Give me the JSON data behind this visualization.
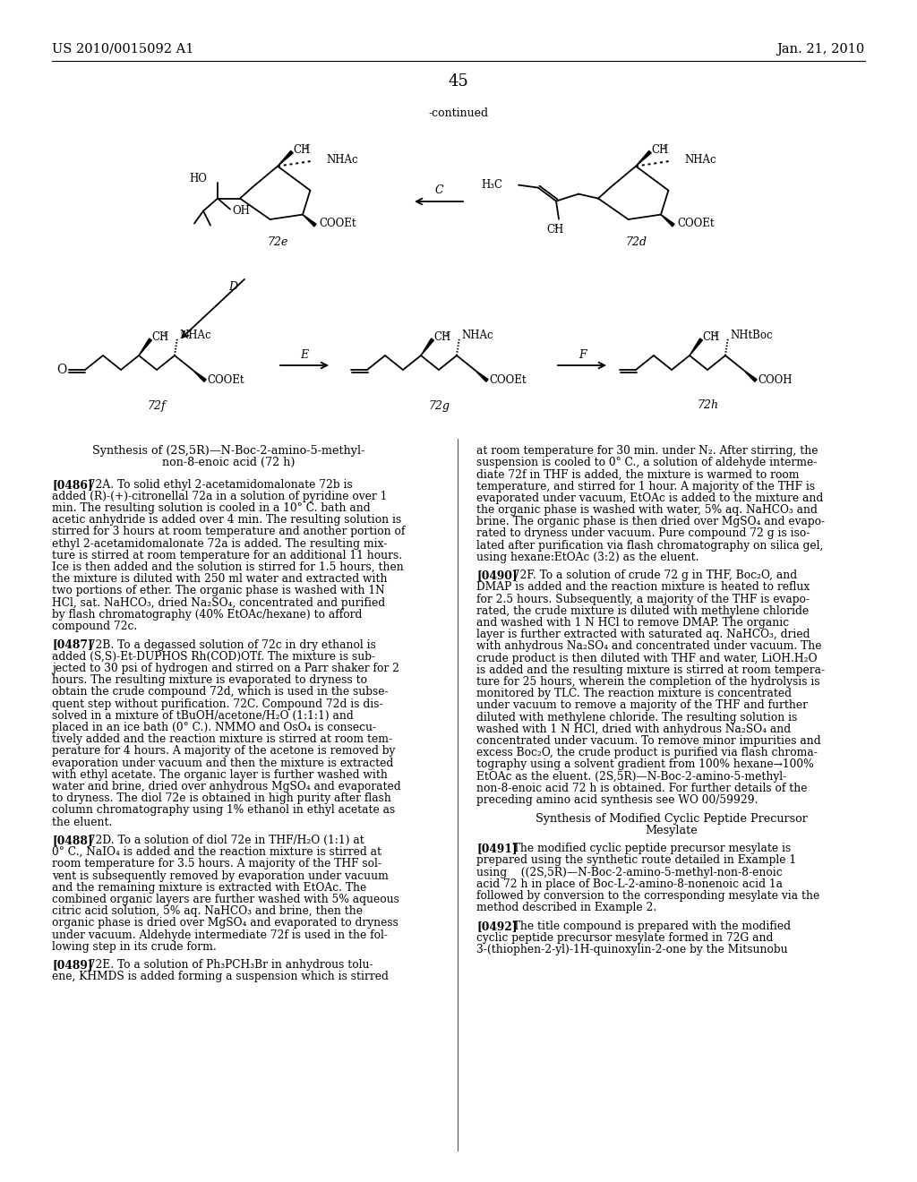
{
  "background_color": "#ffffff",
  "patent_left": "US 2010/0015092 A1",
  "patent_right": "Jan. 21, 2010",
  "page_number": "45",
  "continued_label": "-continued",
  "header_fontsize": 10.5,
  "page_num_fontsize": 13,
  "body_text_left": [
    "Synthesis of (2S,5R)—N-Boc-2-amino-5-methyl-",
    "non-8-enoic acid (72 h)",
    "",
    "[0486]  72A. To solid ethyl 2-acetamidomalonate 72b is",
    "added (R)-(+)-citronellal 72a in a solution of pyridine over 1",
    "min. The resulting solution is cooled in a 10° C. bath and",
    "acetic anhydride is added over 4 min. The resulting solution is",
    "stirred for 3 hours at room temperature and another portion of",
    "ethyl 2-acetamidomalonate 72a is added. The resulting mix-",
    "ture is stirred at room temperature for an additional 11 hours.",
    "Ice is then added and the solution is stirred for 1.5 hours, then",
    "the mixture is diluted with 250 ml water and extracted with",
    "two portions of ether. The organic phase is washed with 1N",
    "HCl, sat. NaHCO₃, dried Na₂SO₄, concentrated and purified",
    "by flash chromatography (40% EtOAc/hexane) to afford",
    "compound 72c.",
    "",
    "[0487]  72B. To a degassed solution of 72c in dry ethanol is",
    "added (S,S)-Et-DUPHOS Rh(COD)OTf. The mixture is sub-",
    "jected to 30 psi of hydrogen and stirred on a Parr shaker for 2",
    "hours. The resulting mixture is evaporated to dryness to",
    "obtain the crude compound 72d, which is used in the subse-",
    "quent step without purification. 72C. Compound 72d is dis-",
    "solved in a mixture of tBuOH/acetone/H₂O (1:1:1) and",
    "placed in an ice bath (0° C.). NMMO and OsO₄ is consecu-",
    "tively added and the reaction mixture is stirred at room tem-",
    "perature for 4 hours. A majority of the acetone is removed by",
    "evaporation under vacuum and then the mixture is extracted",
    "with ethyl acetate. The organic layer is further washed with",
    "water and brine, dried over anhydrous MgSO₄ and evaporated",
    "to dryness. The diol 72e is obtained in high purity after flash",
    "column chromatography using 1% ethanol in ethyl acetate as",
    "the eluent.",
    "",
    "[0488]  72D. To a solution of diol 72e in THF/H₂O (1:1) at",
    "0° C., NaIO₄ is added and the reaction mixture is stirred at",
    "room temperature for 3.5 hours. A majority of the THF sol-",
    "vent is subsequently removed by evaporation under vacuum",
    "and the remaining mixture is extracted with EtOAc. The",
    "combined organic layers are further washed with 5% aqueous",
    "citric acid solution, 5% aq. NaHCO₃ and brine, then the",
    "organic phase is dried over MgSO₄ and evaporated to dryness",
    "under vacuum. Aldehyde intermediate 72f is used in the fol-",
    "lowing step in its crude form.",
    "",
    "[0489]  72E. To a solution of Ph₃PCH₃Br in anhydrous tolu-",
    "ene, KHMDS is added forming a suspension which is stirred"
  ],
  "body_text_right": [
    "at room temperature for 30 min. under N₂. After stirring, the",
    "suspension is cooled to 0° C., a solution of aldehyde interme-",
    "diate 72f in THF is added, the mixture is warmed to room",
    "temperature, and stirred for 1 hour. A majority of the THF is",
    "evaporated under vacuum, EtOAc is added to the mixture and",
    "the organic phase is washed with water, 5% aq. NaHCO₃ and",
    "brine. The organic phase is then dried over MgSO₄ and evapo-",
    "rated to dryness under vacuum. Pure compound 72 g is iso-",
    "lated after purification via flash chromatography on silica gel,",
    "using hexane:EtOAc (3:2) as the eluent.",
    "",
    "[0490]  72F. To a solution of crude 72 g in THF, Boc₂O, and",
    "DMAP is added and the reaction mixture is heated to reflux",
    "for 2.5 hours. Subsequently, a majority of the THF is evapo-",
    "rated, the crude mixture is diluted with methylene chloride",
    "and washed with 1 N HCl to remove DMAP. The organic",
    "layer is further extracted with saturated aq. NaHCO₃, dried",
    "with anhydrous Na₂SO₄ and concentrated under vacuum. The",
    "crude product is then diluted with THF and water, LiOH.H₂O",
    "is added and the resulting mixture is stirred at room tempera-",
    "ture for 25 hours, wherein the completion of the hydrolysis is",
    "monitored by TLC. The reaction mixture is concentrated",
    "under vacuum to remove a majority of the THF and further",
    "diluted with methylene chloride. The resulting solution is",
    "washed with 1 N HCl, dried with anhydrous Na₂SO₄ and",
    "concentrated under vacuum. To remove minor impurities and",
    "excess Boc₂O, the crude product is purified via flash chroma-",
    "tography using a solvent gradient from 100% hexane→100%",
    "EtOAc as the eluent. (2S,5R)—N-Boc-2-amino-5-methyl-",
    "non-8-enoic acid 72 h is obtained. For further details of the",
    "preceding amino acid synthesis see WO 00/59929.",
    "",
    "Synthesis of Modified Cyclic Peptide Precursor",
    "Mesylate",
    "",
    "[0491]  The modified cyclic peptide precursor mesylate is",
    "prepared using the synthetic route detailed in Example 1",
    "using    ((2S,5R)—N-Boc-2-amino-5-methyl-non-8-enoic",
    "acid 72 h in place of Boc-L-2-amino-8-nonenoic acid 1a",
    "followed by conversion to the corresponding mesylate via the",
    "method described in Example 2.",
    "",
    "[0492]  The title compound is prepared with the modified",
    "cyclic peptide precursor mesylate formed in 72G and",
    "3-(thiophen-2-yl)-1H-quinoxylin-2-one by the Mitsunobu"
  ]
}
